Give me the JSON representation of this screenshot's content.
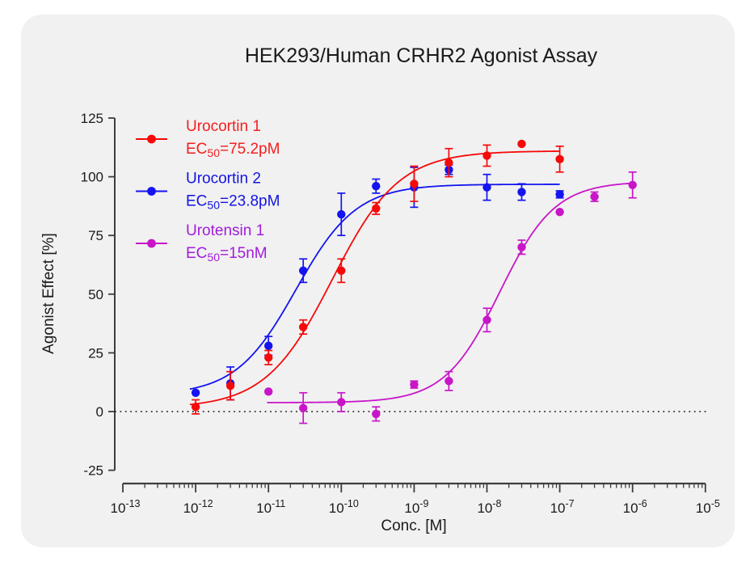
{
  "panel": {
    "background": "#f1f1f1",
    "page_background": "#ffffff"
  },
  "chart_data": {
    "type": "scatter",
    "title": "HEK293/Human CRHR2 Agonist Assay",
    "xlabel": "Conc. [M]",
    "ylabel": "Agonist Effect [%]",
    "x_scale": "log10",
    "x_tick_exponents": [
      -13,
      -12,
      -11,
      -10,
      -9,
      -8,
      -7,
      -6,
      -5
    ],
    "x_tick_base": "10",
    "ylim": [
      -25,
      125
    ],
    "y_ticks": [
      -25,
      0,
      25,
      50,
      75,
      100,
      125
    ],
    "zero_line": {
      "value": 0,
      "style": "dotted",
      "color": "#141414"
    },
    "axis_color": "#3d3d3d",
    "text_color": "#1a1a1a",
    "legend_position": "upper-left-inside",
    "series": [
      {
        "name": "Urocortin 1",
        "ec50_parts": {
          "pre": "EC",
          "sub": "50",
          "post": "=75.2pM"
        },
        "color": "#f50a0a",
        "label_color": "#f51e1e",
        "fit": {
          "bottom": 1.5,
          "top": 111,
          "log_ec50": -10.124,
          "hill": 0.95,
          "from": -12.08,
          "to": -7.0
        },
        "points": [
          {
            "x": 1e-12,
            "y": 2,
            "err": 3
          },
          {
            "x": 3e-12,
            "y": 11,
            "err": 6
          },
          {
            "x": 1e-11,
            "y": 23,
            "err": 3
          },
          {
            "x": 3e-11,
            "y": 36,
            "err": 3
          },
          {
            "x": 1e-10,
            "y": 60,
            "err": 5
          },
          {
            "x": 3e-10,
            "y": 86.5,
            "err": 2.5
          },
          {
            "x": 1e-09,
            "y": 97,
            "err": 7.5
          },
          {
            "x": 3e-09,
            "y": 106,
            "err": 6
          },
          {
            "x": 1e-08,
            "y": 109,
            "err": 4.5
          },
          {
            "x": 3e-08,
            "y": 114,
            "err": 0
          },
          {
            "x": 1e-07,
            "y": 107.5,
            "err": 5.5
          }
        ]
      },
      {
        "name": "Urocortin 2",
        "ec50_parts": {
          "pre": "EC",
          "sub": "50",
          "post": "=23.8pM"
        },
        "color": "#1414f0",
        "label_color": "#1414e0",
        "fit": {
          "bottom": 7,
          "top": 96.8,
          "log_ec50": -10.623,
          "hill": 1.05,
          "from": -12.08,
          "to": -7.0
        },
        "points": [
          {
            "x": 1e-12,
            "y": 8,
            "err": 0
          },
          {
            "x": 3e-12,
            "y": 12,
            "err": 7
          },
          {
            "x": 1e-11,
            "y": 28,
            "err": 4
          },
          {
            "x": 3e-11,
            "y": 60,
            "err": 5
          },
          {
            "x": 1e-10,
            "y": 84,
            "err": 9
          },
          {
            "x": 3e-10,
            "y": 96,
            "err": 3
          },
          {
            "x": 1e-09,
            "y": 95.5,
            "err": 8.5
          },
          {
            "x": 3e-09,
            "y": 103,
            "err": 2
          },
          {
            "x": 1e-08,
            "y": 95.5,
            "err": 5.5
          },
          {
            "x": 3e-08,
            "y": 93.5,
            "err": 3.5
          },
          {
            "x": 1e-07,
            "y": 92.5,
            "err": 1.5
          }
        ]
      },
      {
        "name": "Urotensin 1",
        "ec50_parts": {
          "pre": "EC",
          "sub": "50",
          "post": "=15nM"
        },
        "color": "#c815c8",
        "label_color": "#a21cdb",
        "fit": {
          "bottom": 3.8,
          "top": 98,
          "log_ec50": -7.824,
          "hill": 1.15,
          "from": -11.02,
          "to": -6.0
        },
        "points": [
          {
            "x": 1e-11,
            "y": 8.5,
            "err": 0
          },
          {
            "x": 3e-11,
            "y": 1.5,
            "err": 6.5
          },
          {
            "x": 1e-10,
            "y": 4,
            "err": 4
          },
          {
            "x": 3e-10,
            "y": -1,
            "err": 3
          },
          {
            "x": 1e-09,
            "y": 11.5,
            "err": 1.5
          },
          {
            "x": 3e-09,
            "y": 13,
            "err": 4
          },
          {
            "x": 1e-08,
            "y": 39,
            "err": 5
          },
          {
            "x": 3e-08,
            "y": 70,
            "err": 3
          },
          {
            "x": 1e-07,
            "y": 85,
            "err": 0
          },
          {
            "x": 3e-07,
            "y": 91.5,
            "err": 2
          },
          {
            "x": 1e-06,
            "y": 96.5,
            "err": 5.5
          }
        ]
      }
    ]
  }
}
